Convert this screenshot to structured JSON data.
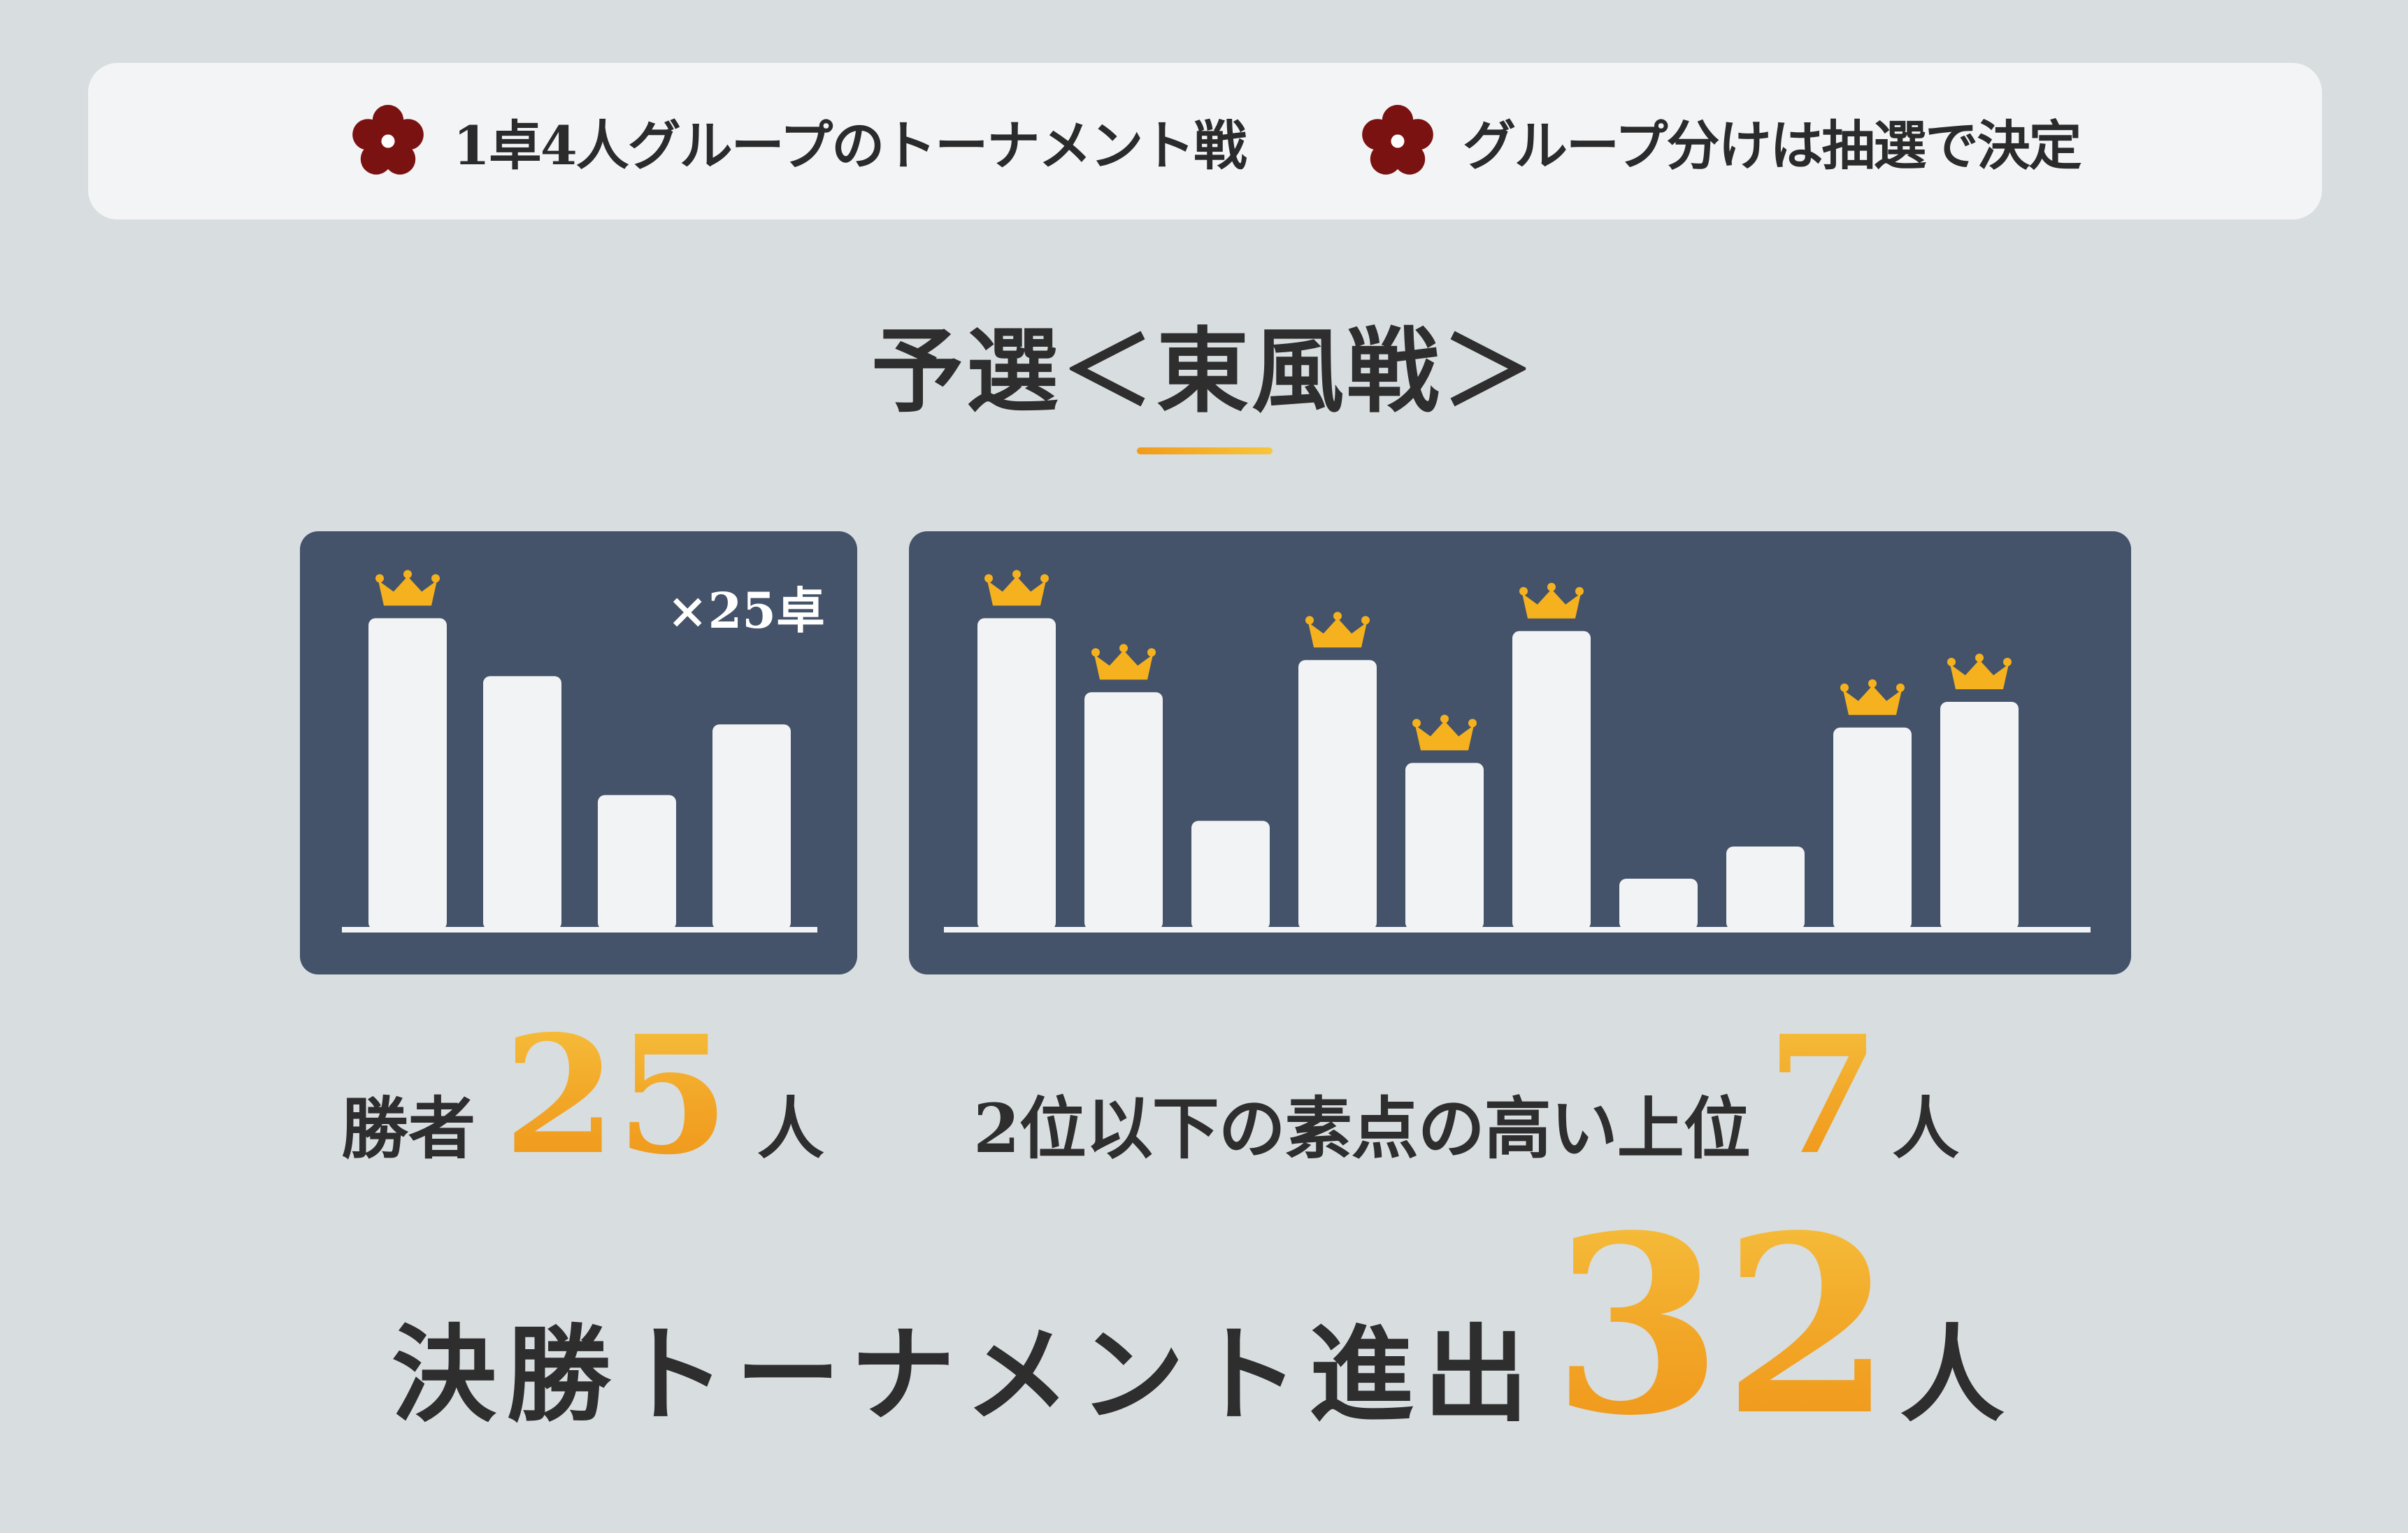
{
  "rules": [
    {
      "icon": "plum-blossom-icon",
      "text": "1卓4人グループのトーナメント戦"
    },
    {
      "icon": "plum-blossom-icon",
      "text": "グループ分けは抽選で決定"
    }
  ],
  "section_title": "予選＜東風戦＞",
  "colors": {
    "background": "#d8dde0",
    "panel": "#44526a",
    "bar": "#f2f3f5",
    "accent": "#f2a526",
    "blossom": "#7a1212"
  },
  "results": {
    "winners_label": "勝者",
    "winners_count": "25",
    "winners_unit": "人",
    "runner_label": "2位以下の素点の高い上位",
    "runner_count": "7",
    "runner_unit": "人",
    "final_label": "決勝トーナメント進出",
    "final_count": "32",
    "final_unit": "人"
  },
  "chart_data": [
    {
      "type": "bar",
      "table_count_label": "×25卓",
      "values": [
        0.96,
        0.78,
        0.41,
        0.63
      ],
      "crowned": [
        true,
        false,
        false,
        false
      ]
    },
    {
      "type": "bar",
      "values": [
        0.96,
        0.73,
        0.33,
        0.83,
        0.51,
        0.92,
        0.15,
        0.25,
        0.62,
        0.7
      ],
      "crowned": [
        true,
        true,
        false,
        true,
        true,
        true,
        false,
        false,
        true,
        true
      ]
    }
  ]
}
